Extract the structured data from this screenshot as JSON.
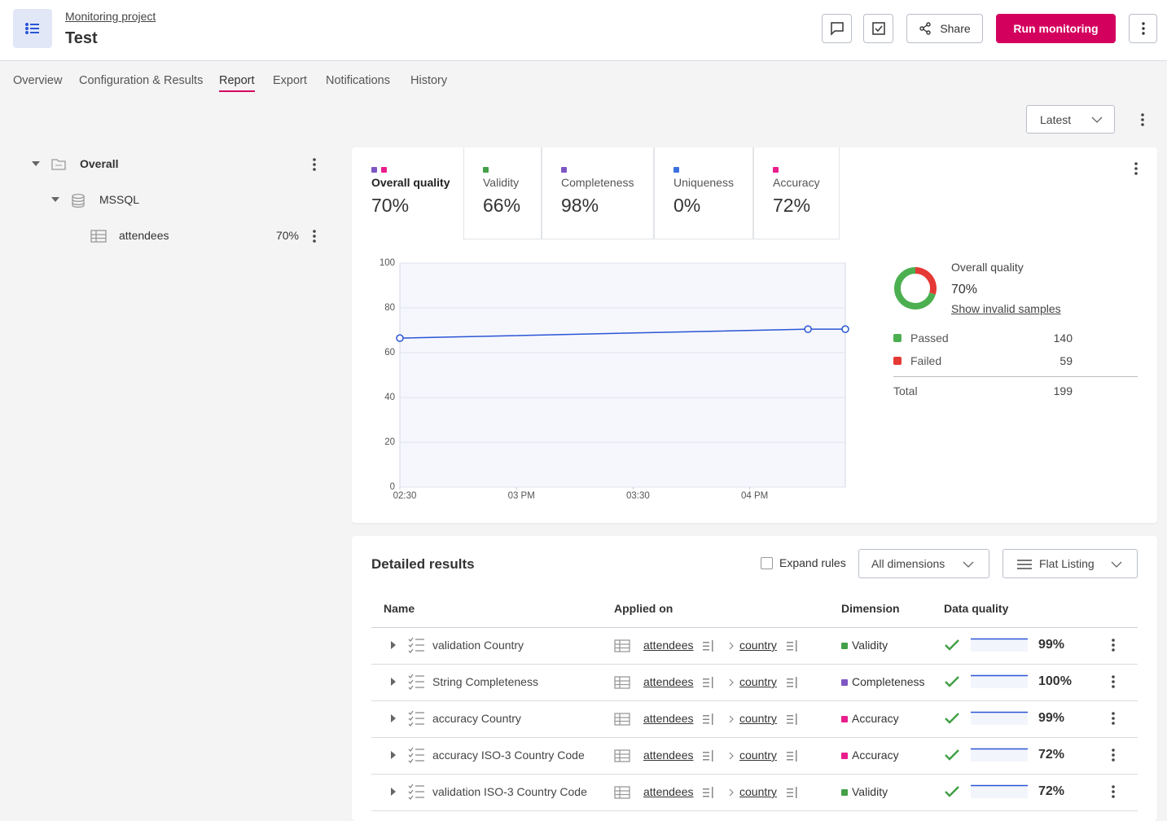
{
  "header": {
    "breadcrumb": "Monitoring project",
    "title": "Test",
    "share_button": "Share",
    "run_button": "Run monitoring"
  },
  "tabs": [
    "Overview",
    "Configuration & Results",
    "Report",
    "Export",
    "Notifications",
    "History"
  ],
  "version_select": "Latest",
  "tree": [
    {
      "label": "Overall"
    },
    {
      "label": "MSSQL"
    },
    {
      "label": "attendees",
      "score": "70%"
    }
  ],
  "dimensions": [
    {
      "name": "Overall quality",
      "value": "70%",
      "colors": [
        "#7e57c2",
        "#e91e8c"
      ]
    },
    {
      "name": "Validity",
      "value": "66%",
      "colors": [
        "#43a047"
      ]
    },
    {
      "name": "Completeness",
      "value": "98%",
      "colors": [
        "#7e57c2"
      ]
    },
    {
      "name": "Uniqueness",
      "value": "0%",
      "colors": [
        "#3d6fe0"
      ]
    },
    {
      "name": "Accuracy",
      "value": "72%",
      "colors": [
        "#e91e8c"
      ]
    }
  ],
  "chart_data": [
    {
      "type": "line",
      "x": [
        14.5,
        16.25,
        16.41
      ],
      "values": [
        66.5,
        70.5,
        70.5
      ],
      "color": "#2a55d4",
      "xlim": [
        14.5,
        16.41
      ],
      "xticks": [
        {
          "value": 14.5,
          "label": "02:30"
        },
        {
          "value": 15,
          "label": "03 PM"
        },
        {
          "value": 15.5,
          "label": "03:30"
        },
        {
          "value": 16,
          "label": "04 PM"
        }
      ],
      "ylim": [
        0,
        100
      ],
      "yticks": [
        0,
        20,
        40,
        60,
        80,
        100
      ],
      "grid": true
    },
    {
      "type": "donut",
      "title": "Overall quality",
      "subtitle": "70%",
      "link": "Show invalid samples",
      "categories": [
        "Passed",
        "Failed"
      ],
      "values": [
        140,
        59
      ],
      "colors": [
        "#4caf50",
        "#e53935"
      ],
      "total_label": "Total",
      "total": 199
    }
  ],
  "results": {
    "title": "Detailed results",
    "expand_rules": "Expand rules",
    "dimension_filter": "All dimensions",
    "listing": "Flat Listing",
    "columns": [
      "Name",
      "Applied on",
      "Dimension",
      "Data quality"
    ],
    "rows": [
      {
        "name": "validation Country",
        "table": "attendees",
        "column": "country",
        "dimension": "Validity",
        "color": "#43a047",
        "quality": "99%"
      },
      {
        "name": "String Completeness",
        "table": "attendees",
        "column": "country",
        "dimension": "Completeness",
        "color": "#7e57c2",
        "quality": "100%"
      },
      {
        "name": "accuracy Country",
        "table": "attendees",
        "column": "country",
        "dimension": "Accuracy",
        "color": "#e91e8c",
        "quality": "99%"
      },
      {
        "name": "accuracy ISO-3 Country Code",
        "table": "attendees",
        "column": "country",
        "dimension": "Accuracy",
        "color": "#e91e8c",
        "quality": "72%"
      },
      {
        "name": "validation ISO-3 Country Code",
        "table": "attendees",
        "column": "country",
        "dimension": "Validity",
        "color": "#43a047",
        "quality": "72%"
      }
    ]
  }
}
